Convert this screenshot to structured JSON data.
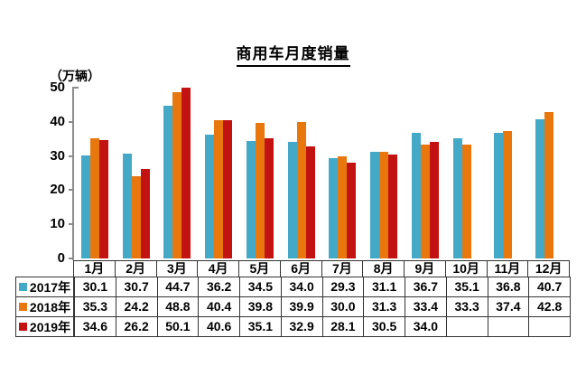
{
  "title": "商用车月度销量",
  "chart_data": {
    "type": "bar",
    "title": "商用车月度销量",
    "unit_label": "（万辆）",
    "ylim": [
      0,
      50
    ],
    "yticks": [
      0,
      10,
      20,
      30,
      40,
      50
    ],
    "grid": false,
    "legend_position": "table-row-labels",
    "categories": [
      "1月",
      "2月",
      "3月",
      "4月",
      "5月",
      "6月",
      "7月",
      "8月",
      "9月",
      "10月",
      "11月",
      "12月"
    ],
    "series": [
      {
        "name": "2017年",
        "color": "#44A9C7",
        "values": [
          30.1,
          30.7,
          44.7,
          36.2,
          34.5,
          34.0,
          29.3,
          31.1,
          36.7,
          35.1,
          36.8,
          40.7
        ]
      },
      {
        "name": "2018年",
        "color": "#E8770D",
        "values": [
          35.3,
          24.2,
          48.8,
          40.4,
          39.8,
          39.9,
          30.0,
          31.3,
          33.4,
          33.3,
          37.4,
          42.8
        ]
      },
      {
        "name": "2019年",
        "color": "#C31212",
        "values": [
          34.6,
          26.2,
          50.1,
          40.6,
          35.1,
          32.9,
          28.1,
          30.5,
          34.0,
          null,
          null,
          null
        ]
      }
    ]
  }
}
